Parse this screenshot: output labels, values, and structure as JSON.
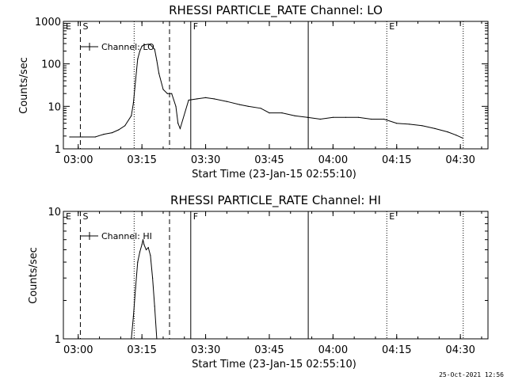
{
  "footer_timestamp": "25-Oct-2021 12:56",
  "chart_data": [
    {
      "type": "line",
      "title": "RHESSI PARTICLE_RATE Channel: LO",
      "xlabel": "Start Time (23-Jan-15 02:55:10)",
      "ylabel": "Counts/sec",
      "y_scale": "log",
      "xlim": [
        "02:56:30",
        "04:36:30"
      ],
      "ylim": [
        1,
        1000
      ],
      "x_ticks": [
        "03:00",
        "03:15",
        "03:30",
        "03:45",
        "04:00",
        "04:15",
        "04:30"
      ],
      "y_ticks": [
        "1",
        "10",
        "100",
        "1000"
      ],
      "legend": "Channel: LO",
      "markers": [
        {
          "label": "E",
          "time": "02:56:30",
          "style": "dotted"
        },
        {
          "label": "S",
          "time": "03:00:30",
          "style": "dashed"
        },
        {
          "label": "",
          "time": "03:13:10",
          "style": "dotted"
        },
        {
          "label": "",
          "time": "03:21:30",
          "style": "dashed"
        },
        {
          "label": "F",
          "time": "03:26:30",
          "style": "solid"
        },
        {
          "label": "",
          "time": "03:54:10",
          "style": "solid"
        },
        {
          "label": "E",
          "time": "04:12:40",
          "style": "dotted"
        },
        {
          "label": "",
          "time": "04:30:40",
          "style": "dotted"
        }
      ],
      "series": [
        {
          "x": [
            "02:58:00",
            "03:01:00",
            "03:04:00",
            "03:06:00",
            "03:08:00",
            "03:09:30",
            "03:11:00",
            "03:12:30",
            "03:13:00",
            "03:13:30",
            "03:14:00",
            "03:14:30",
            "03:15:00",
            "03:15:30",
            "03:16:30",
            "03:17:00",
            "03:18:00",
            "03:18:30",
            "03:19:00",
            "03:20:00",
            "03:21:00",
            "03:22:00",
            "03:23:00",
            "03:23:30",
            "03:24:00",
            "03:26:00",
            "03:28:00",
            "03:30:00",
            "03:32:00",
            "03:35:00",
            "03:38:00",
            "03:40:00",
            "03:43:00",
            "03:45:00",
            "03:48:00",
            "03:51:00",
            "03:54:00",
            "03:57:00",
            "04:00:00",
            "04:03:00",
            "04:06:00",
            "04:09:00",
            "04:12:00",
            "04:15:00",
            "04:18:00",
            "04:21:00",
            "04:24:00",
            "04:27:00",
            "04:29:00",
            "04:30:30"
          ],
          "y": [
            1.9,
            1.9,
            1.9,
            2.2,
            2.4,
            2.8,
            3.5,
            6,
            12,
            40,
            130,
            200,
            260,
            280,
            290,
            280,
            220,
            120,
            60,
            25,
            20,
            20,
            10,
            4,
            3,
            14,
            15,
            16,
            15,
            13,
            11,
            10,
            9,
            7,
            7,
            6,
            5.5,
            5,
            5.5,
            5.5,
            5.5,
            5,
            5,
            4,
            3.8,
            3.5,
            3,
            2.5,
            2.1,
            1.8
          ]
        }
      ]
    },
    {
      "type": "line",
      "title": "RHESSI PARTICLE_RATE Channel: HI",
      "xlabel": "Start Time (23-Jan-15 02:55:10)",
      "ylabel": "Counts/sec",
      "y_scale": "log",
      "xlim": [
        "02:56:30",
        "04:36:30"
      ],
      "ylim": [
        1,
        10
      ],
      "x_ticks": [
        "03:00",
        "03:15",
        "03:30",
        "03:45",
        "04:00",
        "04:15",
        "04:30"
      ],
      "y_ticks": [
        "1",
        "10"
      ],
      "legend": "Channel: HI",
      "markers": [
        {
          "label": "E",
          "time": "02:56:30",
          "style": "dotted"
        },
        {
          "label": "S",
          "time": "03:00:30",
          "style": "dashed"
        },
        {
          "label": "",
          "time": "03:13:10",
          "style": "dotted"
        },
        {
          "label": "",
          "time": "03:21:30",
          "style": "dashed"
        },
        {
          "label": "F",
          "time": "03:26:30",
          "style": "solid"
        },
        {
          "label": "",
          "time": "03:54:10",
          "style": "solid"
        },
        {
          "label": "E",
          "time": "04:12:40",
          "style": "dotted"
        },
        {
          "label": "",
          "time": "04:30:40",
          "style": "dotted"
        }
      ],
      "series": [
        {
          "x": [
            "03:12:30",
            "03:13:00",
            "03:13:30",
            "03:14:00",
            "03:14:30",
            "03:15:00",
            "03:15:15",
            "03:15:30",
            "03:16:00",
            "03:16:30",
            "03:17:00",
            "03:17:30",
            "03:18:00",
            "03:18:30"
          ],
          "y": [
            1,
            1.5,
            2.5,
            4,
            4.8,
            5.5,
            6,
            5.5,
            5,
            5.2,
            4.5,
            3,
            1.8,
            1
          ]
        }
      ]
    }
  ]
}
